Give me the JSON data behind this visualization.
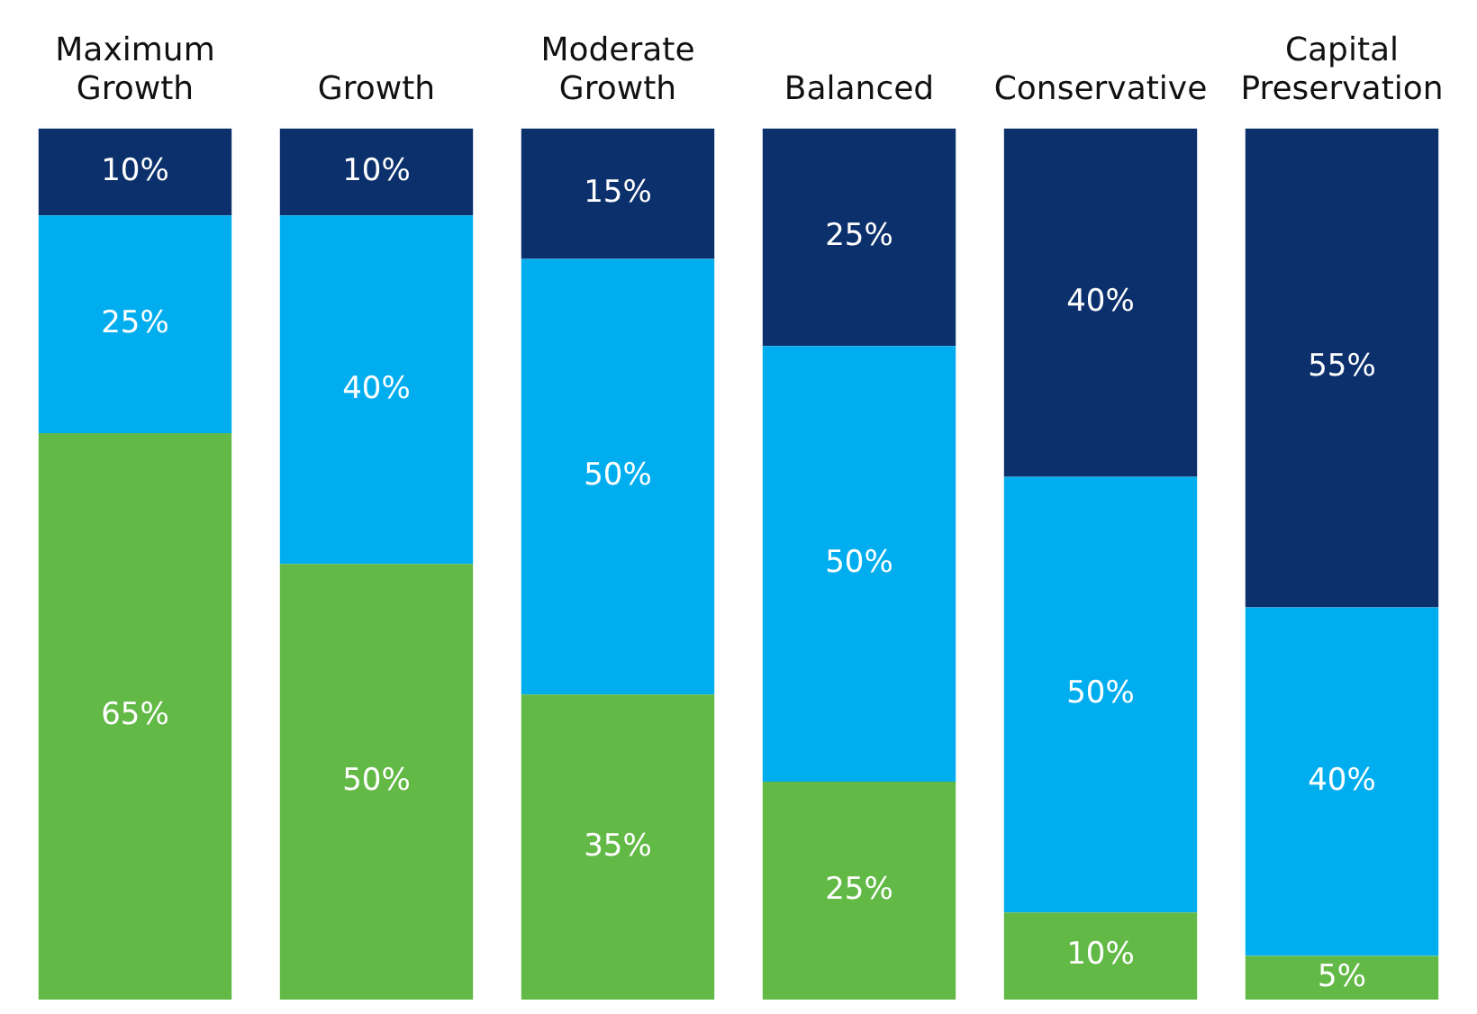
{
  "chart_data": {
    "type": "bar",
    "stacked": true,
    "categories": [
      "Maximum Growth",
      "Growth",
      "Moderate Growth",
      "Balanced",
      "Conservative",
      "Capital Preservation"
    ],
    "series": [
      {
        "color": "#62b946",
        "values": [
          65,
          50,
          35,
          25,
          10,
          5
        ],
        "value_labels": [
          "65%",
          "50%",
          "35%",
          "25%",
          "10%",
          "5%"
        ]
      },
      {
        "color": "#00aeef",
        "values": [
          25,
          40,
          50,
          50,
          50,
          40
        ],
        "value_labels": [
          "25%",
          "40%",
          "50%",
          "50%",
          "50%",
          "40%"
        ]
      },
      {
        "color": "#0c306c",
        "values": [
          10,
          10,
          15,
          25,
          40,
          55
        ],
        "value_labels": [
          "10%",
          "10%",
          "15%",
          "25%",
          "40%",
          "55%"
        ]
      }
    ],
    "legend": false,
    "grid": false
  }
}
